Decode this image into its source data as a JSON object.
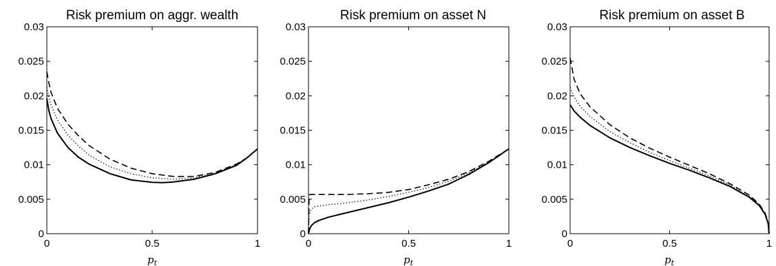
{
  "chart_data": [
    {
      "type": "line",
      "title": "Risk premium on aggr. wealth",
      "xlabel": "p",
      "xlabel_sub": "t",
      "ylabel": "",
      "xlim": [
        0,
        1
      ],
      "ylim": [
        0,
        0.03
      ],
      "xticks": [
        0,
        0.5,
        1
      ],
      "xtick_labels": [
        "0",
        "0.5",
        "1"
      ],
      "yticks": [
        0,
        0.005,
        0.01,
        0.015,
        0.02,
        0.025,
        0.03
      ],
      "ytick_labels": [
        "0",
        "0.005",
        "0.01",
        "0.015",
        "0.02",
        "0.025",
        "0.03"
      ],
      "grid": false,
      "series": [
        {
          "style": "solid",
          "x": [
            0,
            0.01,
            0.02,
            0.05,
            0.1,
            0.15,
            0.2,
            0.3,
            0.4,
            0.5,
            0.55,
            0.6,
            0.7,
            0.8,
            0.9,
            0.95,
            1.0
          ],
          "y": [
            0.0196,
            0.0178,
            0.0167,
            0.0146,
            0.0125,
            0.0111,
            0.0101,
            0.0087,
            0.0078,
            0.00745,
            0.0074,
            0.0075,
            0.0079,
            0.0087,
            0.0099,
            0.011,
            0.0123
          ]
        },
        {
          "style": "dotted",
          "x": [
            0,
            0.01,
            0.02,
            0.05,
            0.1,
            0.15,
            0.2,
            0.3,
            0.4,
            0.5,
            0.6,
            0.7,
            0.8,
            0.9,
            0.95,
            1.0
          ],
          "y": [
            0.0212,
            0.0197,
            0.0187,
            0.0165,
            0.0143,
            0.0127,
            0.0114,
            0.0097,
            0.0087,
            0.0081,
            0.0079,
            0.0081,
            0.0088,
            0.01,
            0.011,
            0.0123
          ]
        },
        {
          "style": "dashed",
          "x": [
            0,
            0.01,
            0.02,
            0.05,
            0.1,
            0.15,
            0.2,
            0.3,
            0.4,
            0.5,
            0.6,
            0.7,
            0.8,
            0.9,
            0.95,
            1.0
          ],
          "y": [
            0.0235,
            0.0218,
            0.0205,
            0.0182,
            0.0159,
            0.0142,
            0.0128,
            0.0108,
            0.0095,
            0.0087,
            0.0083,
            0.0083,
            0.0089,
            0.0101,
            0.011,
            0.0123
          ]
        }
      ]
    },
    {
      "type": "line",
      "title": "Risk premium on asset N",
      "xlabel": "p",
      "xlabel_sub": "t",
      "ylabel": "",
      "xlim": [
        0,
        1
      ],
      "ylim": [
        0,
        0.03
      ],
      "xticks": [
        0,
        0.5,
        1
      ],
      "xtick_labels": [
        "0",
        "0.5",
        "1"
      ],
      "yticks": [
        0,
        0.005,
        0.01,
        0.015,
        0.02,
        0.025,
        0.03
      ],
      "ytick_labels": [
        "0",
        "0.005",
        "0.01",
        "0.015",
        "0.02",
        "0.025",
        "0.03"
      ],
      "grid": false,
      "series": [
        {
          "style": "solid",
          "x": [
            0,
            0.003,
            0.008,
            0.015,
            0.03,
            0.05,
            0.1,
            0.2,
            0.3,
            0.4,
            0.5,
            0.6,
            0.7,
            0.8,
            0.9,
            1.0
          ],
          "y": [
            0.0,
            0.0004,
            0.0008,
            0.0012,
            0.0016,
            0.0019,
            0.0024,
            0.0031,
            0.0038,
            0.0045,
            0.0053,
            0.0062,
            0.0072,
            0.0086,
            0.0103,
            0.0123
          ]
        },
        {
          "style": "dotted",
          "x": [
            0,
            0.003,
            0.008,
            0.015,
            0.03,
            0.05,
            0.1,
            0.2,
            0.3,
            0.4,
            0.5,
            0.6,
            0.7,
            0.8,
            0.9,
            1.0
          ],
          "y": [
            0.0,
            0.0025,
            0.0032,
            0.0036,
            0.0039,
            0.004,
            0.0042,
            0.0045,
            0.0049,
            0.0054,
            0.006,
            0.0067,
            0.0076,
            0.0088,
            0.0104,
            0.0123
          ]
        },
        {
          "style": "dashed",
          "x": [
            0,
            0.003,
            0.008,
            0.015,
            0.03,
            0.05,
            0.1,
            0.2,
            0.3,
            0.4,
            0.5,
            0.6,
            0.7,
            0.8,
            0.9,
            1.0
          ],
          "y": [
            0.0,
            0.0055,
            0.0057,
            0.0057,
            0.0057,
            0.0057,
            0.0057,
            0.0057,
            0.0058,
            0.006,
            0.0064,
            0.0071,
            0.0079,
            0.009,
            0.0105,
            0.0123
          ]
        }
      ]
    },
    {
      "type": "line",
      "title": "Risk premium on asset B",
      "xlabel": "p",
      "xlabel_sub": "t",
      "ylabel": "",
      "xlim": [
        0,
        1
      ],
      "ylim": [
        0,
        0.03
      ],
      "xticks": [
        0,
        0.5,
        1
      ],
      "xtick_labels": [
        "0",
        "0.5",
        "1"
      ],
      "yticks": [
        0,
        0.005,
        0.01,
        0.015,
        0.02,
        0.025,
        0.03
      ],
      "ytick_labels": [
        "0",
        "0.005",
        "0.01",
        "0.015",
        "0.02",
        "0.025",
        "0.03"
      ],
      "grid": false,
      "series": [
        {
          "style": "solid",
          "x": [
            0,
            0.02,
            0.05,
            0.1,
            0.2,
            0.3,
            0.4,
            0.5,
            0.6,
            0.7,
            0.8,
            0.9,
            0.95,
            0.98,
            0.995,
            1.0
          ],
          "y": [
            0.0187,
            0.0178,
            0.0169,
            0.0157,
            0.0139,
            0.0125,
            0.0113,
            0.0102,
            0.0092,
            0.0081,
            0.0069,
            0.0053,
            0.0041,
            0.0028,
            0.0015,
            0.0
          ]
        },
        {
          "style": "dotted",
          "x": [
            0,
            0.02,
            0.05,
            0.1,
            0.2,
            0.3,
            0.4,
            0.5,
            0.6,
            0.7,
            0.8,
            0.9,
            0.95,
            0.98,
            0.995,
            1.0
          ],
          "y": [
            0.0212,
            0.0198,
            0.0185,
            0.017,
            0.0148,
            0.0132,
            0.0118,
            0.0106,
            0.0095,
            0.0084,
            0.0071,
            0.0054,
            0.0042,
            0.0029,
            0.0016,
            0.0
          ]
        },
        {
          "style": "dashed",
          "x": [
            0,
            0.02,
            0.05,
            0.1,
            0.2,
            0.3,
            0.4,
            0.5,
            0.6,
            0.7,
            0.8,
            0.9,
            0.95,
            0.98,
            0.995,
            1.0
          ],
          "y": [
            0.0255,
            0.0224,
            0.0203,
            0.0184,
            0.0158,
            0.0139,
            0.0124,
            0.0111,
            0.0099,
            0.0087,
            0.0073,
            0.0056,
            0.0043,
            0.003,
            0.0016,
            0.0
          ]
        }
      ]
    }
  ]
}
